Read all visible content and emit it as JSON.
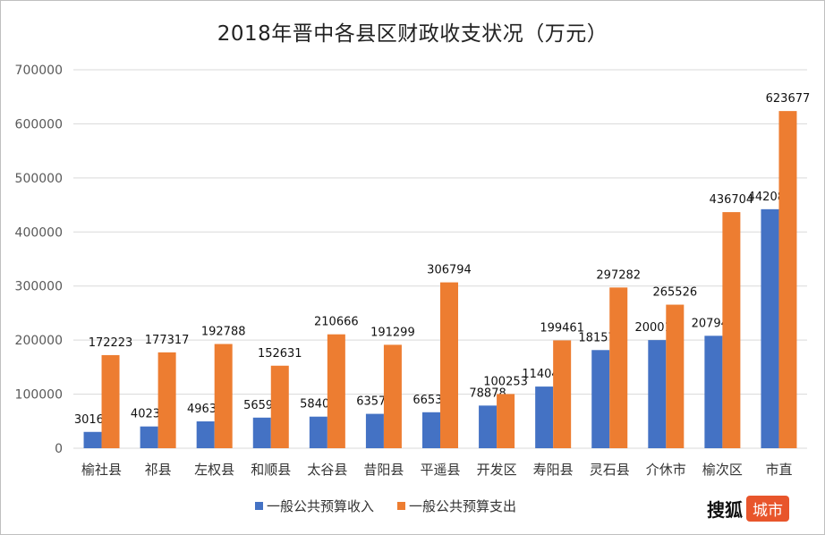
{
  "chart_data": {
    "type": "bar",
    "title": "2018年晋中各县区财政收支状况（万元）",
    "categories": [
      "榆社县",
      "祁县",
      "左权县",
      "和顺县",
      "太谷县",
      "昔阳县",
      "平遥县",
      "开发区",
      "寿阳县",
      "灵石县",
      "介休市",
      "榆次区",
      "市直"
    ],
    "series": [
      {
        "name": "一般公共预算收入",
        "color": "#4472c4",
        "values": [
          30169,
          40233,
          49632,
          56598,
          58403,
          63578,
          66536,
          78878,
          114046,
          181572,
          200019,
          207940,
          442084
        ]
      },
      {
        "name": "一般公共预算支出",
        "color": "#ed7d31",
        "values": [
          172223,
          177317,
          192788,
          152631,
          210666,
          191299,
          306794,
          100253,
          199461,
          297282,
          265526,
          436704,
          623677
        ]
      }
    ],
    "ylim": [
      0,
      700000
    ],
    "yticks": [
      0,
      100000,
      200000,
      300000,
      400000,
      500000,
      600000,
      700000
    ],
    "grid": true,
    "legend": "bottom"
  },
  "watermark": {
    "text": "搜狐",
    "badge": "城市"
  }
}
